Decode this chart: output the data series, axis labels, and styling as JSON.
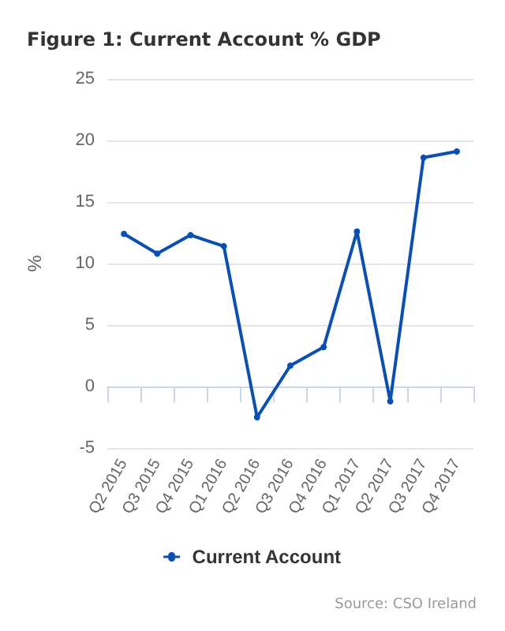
{
  "chart_data": {
    "type": "line",
    "title": "Figure 1: Current Account % GDP",
    "ylabel": "%",
    "categories": [
      "Q2 2015",
      "Q3 2015",
      "Q4 2015",
      "Q1 2016",
      "Q2 2016",
      "Q3 2016",
      "Q4 2016",
      "Q1 2017",
      "Q2 2017",
      "Q3 2017",
      "Q4 2017"
    ],
    "series": [
      {
        "name": "Current Account",
        "color": "#0a50b4",
        "values": [
          12.4,
          10.8,
          12.3,
          11.4,
          -2.5,
          1.7,
          3.2,
          12.6,
          -1.2,
          18.6,
          19.1
        ]
      }
    ],
    "ylim": [
      -5,
      25
    ],
    "yticks": [
      -5,
      0,
      5,
      10,
      15,
      20,
      25
    ],
    "grid": "y",
    "legend": "bottom",
    "marker": "circle",
    "line_style": "solid",
    "annotations": [
      "Source: CSO Ireland"
    ]
  }
}
